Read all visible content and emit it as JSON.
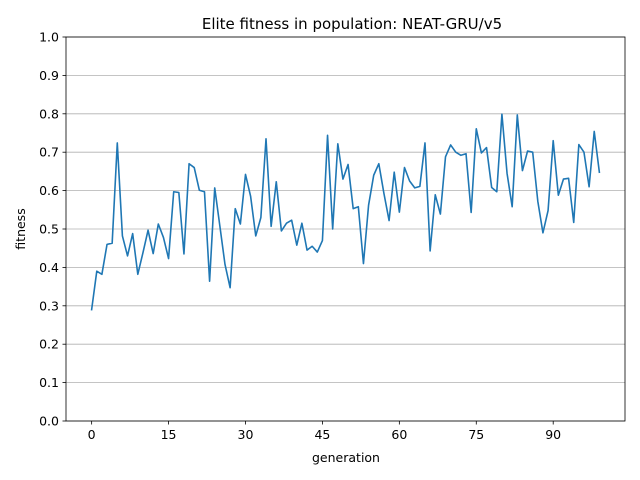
{
  "chart_data": {
    "type": "line",
    "title": "Elite fitness in population: NEAT-GRU/v5",
    "xlabel": "generation",
    "ylabel": "fitness",
    "xlim": [
      -5.0,
      104.0
    ],
    "ylim": [
      0.0,
      1.0
    ],
    "xticks": [
      0,
      15,
      30,
      45,
      60,
      75,
      90
    ],
    "yticks": [
      0.0,
      0.1,
      0.2,
      0.3,
      0.4,
      0.5,
      0.6,
      0.7,
      0.8,
      0.9,
      1.0
    ],
    "ytick_labels": [
      "0.0",
      "0.1",
      "0.2",
      "0.3",
      "0.4",
      "0.5",
      "0.6",
      "0.7",
      "0.8",
      "0.9",
      "1.0"
    ],
    "grid": "horizontal",
    "series": [
      {
        "color": "#1f77b4",
        "values": [
          0.29,
          0.39,
          0.382,
          0.46,
          0.463,
          0.724,
          0.482,
          0.43,
          0.488,
          0.382,
          0.438,
          0.497,
          0.436,
          0.513,
          0.478,
          0.423,
          0.597,
          0.595,
          0.435,
          0.67,
          0.66,
          0.601,
          0.597,
          0.364,
          0.607,
          0.508,
          0.408,
          0.347,
          0.553,
          0.513,
          0.642,
          0.585,
          0.482,
          0.53,
          0.735,
          0.507,
          0.623,
          0.495,
          0.515,
          0.523,
          0.458,
          0.515,
          0.445,
          0.455,
          0.44,
          0.47,
          0.744,
          0.5,
          0.722,
          0.63,
          0.668,
          0.553,
          0.558,
          0.41,
          0.562,
          0.64,
          0.67,
          0.592,
          0.522,
          0.648,
          0.544,
          0.66,
          0.625,
          0.607,
          0.611,
          0.724,
          0.443,
          0.589,
          0.539,
          0.688,
          0.719,
          0.7,
          0.692,
          0.696,
          0.543,
          0.761,
          0.698,
          0.712,
          0.608,
          0.597,
          0.799,
          0.645,
          0.558,
          0.797,
          0.652,
          0.703,
          0.7,
          0.572,
          0.49,
          0.548,
          0.73,
          0.588,
          0.63,
          0.632,
          0.517,
          0.72,
          0.7,
          0.61,
          0.754,
          0.648
        ]
      }
    ]
  }
}
